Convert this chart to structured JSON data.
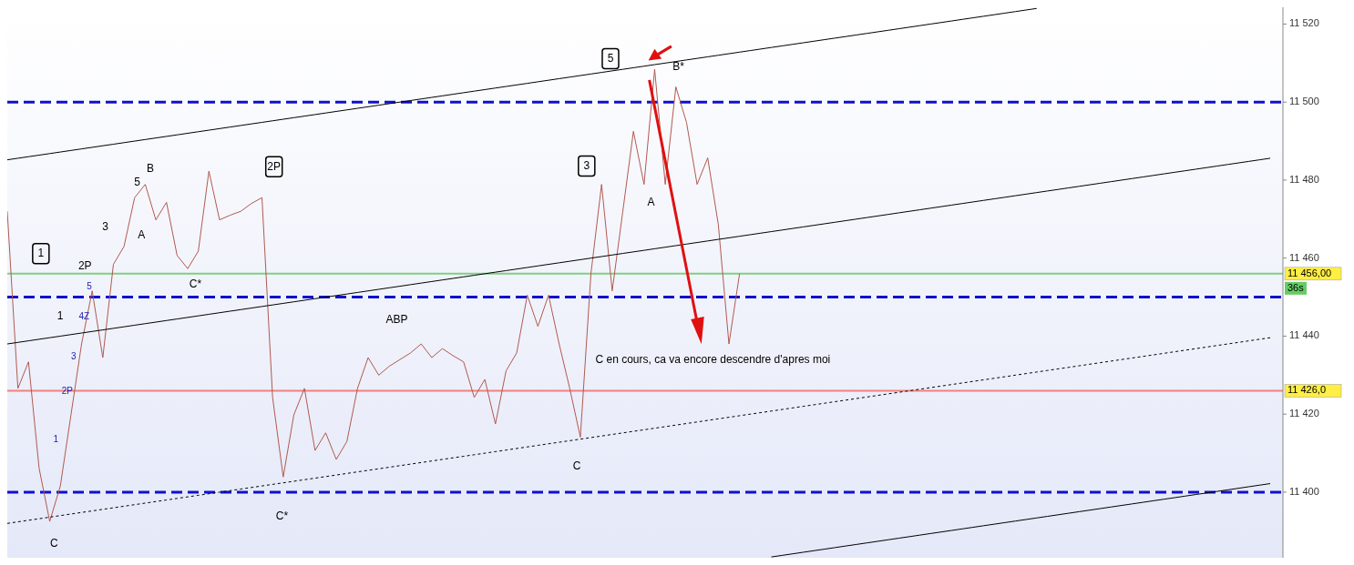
{
  "chart_data": {
    "type": "line",
    "categories": [
      null,
      null,
      null,
      null,
      null,
      null,
      null,
      null,
      null,
      null,
      null,
      null,
      null,
      null,
      null,
      null,
      null,
      null,
      null,
      null,
      null,
      null,
      null,
      null,
      null,
      null,
      null,
      null,
      null,
      null,
      null,
      null,
      null,
      null,
      null,
      null,
      null,
      null,
      null,
      null,
      null,
      null,
      null,
      null,
      null,
      null,
      null,
      null,
      null,
      null,
      null,
      null,
      null,
      null,
      null,
      null,
      null,
      null,
      null,
      null,
      null,
      null,
      null,
      null,
      null,
      null,
      null,
      null,
      null,
      null,
      null,
      null,
      null,
      null,
      null,
      null,
      null,
      null,
      null,
      null,
      null,
      null,
      null,
      null,
      null,
      null,
      null,
      null,
      null,
      null,
      null,
      null,
      null,
      null,
      null,
      null,
      null,
      null,
      null,
      null,
      null,
      null,
      null,
      null,
      null,
      null,
      null,
      null,
      null,
      null,
      null,
      null,
      null,
      null,
      null,
      null,
      null,
      null,
      null,
      null
    ],
    "ylim": [
      11383.2,
      11524.3
    ],
    "yticks": [
      {
        "value": 11400,
        "label": "11 400"
      },
      {
        "value": 11420,
        "label": "11 420"
      },
      {
        "value": 11440,
        "label": "11 440"
      },
      {
        "value": 11460,
        "label": "11 460"
      },
      {
        "value": 11480,
        "label": "11 480"
      },
      {
        "value": 11500,
        "label": "11 500"
      },
      {
        "value": 11520,
        "label": "11 520"
      }
    ],
    "tick_labels": "y",
    "series": [
      {
        "color": "#b05a50",
        "values": [
          11472,
          11426.6,
          11433.4,
          11406.1,
          11392.5,
          11401.6,
          11419.8,
          11438,
          11451.6,
          11434.5,
          11458.4,
          11463,
          11475.5,
          11478.9,
          11469.8,
          11474.3,
          11460.7,
          11457.3,
          11461.8,
          11482.3,
          11469.8,
          11471,
          11472,
          11474,
          11475.5,
          11424.3,
          11403.9,
          11419.8,
          11426.6,
          11410.7,
          11415.2,
          11408.4,
          11413,
          11426.6,
          11434.5,
          11430,
          11432.3,
          11434,
          11435.7,
          11438,
          11434.5,
          11436.8,
          11435,
          11433.4,
          11424.3,
          11428.9,
          11417.5,
          11431.1,
          11435.7,
          11450.5,
          11442.5,
          11450.5,
          11438,
          11426.6,
          11414.1,
          11456.1,
          11478.9,
          11451.6,
          11472,
          11492.5,
          11478.9,
          11508.4,
          11478.9,
          11503.9,
          11494.8,
          11478.9,
          11485.7,
          11468.6,
          11438,
          11456,
          null,
          null,
          null,
          null,
          null,
          null,
          null,
          null,
          null,
          null,
          null,
          null,
          null,
          null,
          null,
          null,
          null,
          null,
          null,
          null,
          null,
          null,
          null,
          null,
          null,
          null,
          null,
          null,
          null,
          null,
          null,
          null,
          null,
          null,
          null,
          null,
          null,
          null,
          null,
          null,
          null,
          null,
          null,
          null,
          null,
          null,
          null,
          null,
          null,
          null
        ]
      },
      {
        "color": "#000000",
        "values": [
          11485.2,
          11485.6,
          11486,
          11486.4,
          11486.8,
          11487.2,
          11487.6,
          11488,
          11488.4,
          11488.8,
          11489.2,
          11489.6,
          11490,
          11490.4,
          11490.8,
          11491.2,
          11491.6,
          11492,
          11492.4,
          11492.8,
          11493.2,
          11493.6,
          11494,
          11494.4,
          11494.8,
          11495.2,
          11495.6,
          11496,
          11496.4,
          11496.8,
          11497.2,
          11497.6,
          11498,
          11498.4,
          11498.8,
          11499.2,
          11499.6,
          11500,
          11500.4,
          11500.8,
          11501.2,
          11501.6,
          11502,
          11502.4,
          11502.8,
          11503.2,
          11503.6,
          11504,
          11504.4,
          11504.8,
          11505.2,
          11505.6,
          11506,
          11506.4,
          11506.8,
          11507.2,
          11507.6,
          11508,
          11508.4,
          11508.8,
          11509.2,
          11509.6,
          11510,
          11510.4,
          11510.8,
          11511.2,
          11511.6,
          11512,
          11512.4,
          11512.8,
          11513.2,
          11513.6,
          11514,
          11514.4,
          11514.8,
          11515.2,
          11515.6,
          11516,
          11516.4,
          11516.8,
          11517.2,
          11517.6,
          11518,
          11518.4,
          11518.8,
          11519.2,
          11519.6,
          11520,
          11520.4,
          11520.8,
          11521.2,
          11521.6,
          11522,
          11522.4,
          11522.8,
          11523.2,
          11523.6,
          11524,
          null,
          null,
          null,
          null,
          null,
          null,
          null,
          null,
          null,
          null,
          null,
          null,
          null,
          null,
          null,
          null,
          null,
          null,
          null,
          null,
          null,
          null
        ]
      },
      {
        "color": "#000000",
        "values": [
          11438,
          11438.4,
          11438.8,
          11439.2,
          11439.6,
          11440,
          11440.4,
          11440.8,
          11441.2,
          11441.6,
          11442,
          11442.4,
          11442.8,
          11443.2,
          11443.6,
          11444,
          11444.4,
          11444.8,
          11445.2,
          11445.6,
          11446,
          11446.4,
          11446.8,
          11447.2,
          11447.6,
          11448,
          11448.4,
          11448.8,
          11449.2,
          11449.6,
          11450,
          11450.4,
          11450.8,
          11451.2,
          11451.6,
          11452,
          11452.4,
          11452.8,
          11453.2,
          11453.6,
          11454,
          11454.4,
          11454.8,
          11455.2,
          11455.6,
          11456,
          11456.4,
          11456.8,
          11457.2,
          11457.6,
          11458,
          11458.4,
          11458.8,
          11459.2,
          11459.6,
          11460,
          11460.4,
          11460.8,
          11461.2,
          11461.6,
          11462,
          11462.4,
          11462.8,
          11463.2,
          11463.6,
          11464,
          11464.4,
          11464.8,
          11465.2,
          11465.6,
          11466,
          11466.4,
          11466.8,
          11467.2,
          11467.6,
          11468,
          11468.4,
          11468.8,
          11469.2,
          11469.6,
          11470,
          11470.4,
          11470.8,
          11471.2,
          11471.6,
          11472,
          11472.4,
          11472.8,
          11473.2,
          11473.6,
          11474,
          11474.4,
          11474.8,
          11475.2,
          11475.6,
          11476,
          11476.4,
          11476.8,
          11477.2,
          11477.6,
          11478,
          11478.4,
          11478.8,
          11479.2,
          11479.6,
          11480,
          11480.4,
          11480.8,
          11481.2,
          11481.6,
          11482,
          11482.4,
          11482.8,
          11483.2,
          11483.6,
          11484,
          11484.4,
          11484.8,
          11485.2,
          11485.6
        ]
      },
      {
        "color": "#000000",
        "line_style": "dotted",
        "values": [
          11392,
          11392.4,
          11392.8,
          11393.2,
          11393.6,
          11394,
          11394.4,
          11394.8,
          11395.2,
          11395.6,
          11396,
          11396.4,
          11396.8,
          11397.2,
          11397.6,
          11398,
          11398.4,
          11398.8,
          11399.2,
          11399.6,
          11400,
          11400.4,
          11400.8,
          11401.2,
          11401.6,
          11402,
          11402.4,
          11402.8,
          11403.2,
          11403.6,
          11404,
          11404.4,
          11404.8,
          11405.2,
          11405.6,
          11406,
          11406.4,
          11406.8,
          11407.2,
          11407.6,
          11408,
          11408.4,
          11408.8,
          11409.2,
          11409.6,
          11410,
          11410.4,
          11410.8,
          11411.2,
          11411.6,
          11412,
          11412.4,
          11412.8,
          11413.2,
          11413.6,
          11414,
          11414.4,
          11414.8,
          11415.2,
          11415.6,
          11416,
          11416.4,
          11416.8,
          11417.2,
          11417.6,
          11418,
          11418.4,
          11418.8,
          11419.2,
          11419.6,
          11420,
          11420.4,
          11420.8,
          11421.2,
          11421.6,
          11422,
          11422.4,
          11422.8,
          11423.2,
          11423.6,
          11424,
          11424.4,
          11424.8,
          11425.2,
          11425.6,
          11426,
          11426.4,
          11426.8,
          11427.2,
          11427.6,
          11428,
          11428.4,
          11428.8,
          11429.2,
          11429.6,
          11430,
          11430.4,
          11430.8,
          11431.2,
          11431.6,
          11432,
          11432.4,
          11432.8,
          11433.2,
          11433.6,
          11434,
          11434.4,
          11434.8,
          11435.2,
          11435.6,
          11436,
          11436.4,
          11436.8,
          11437.2,
          11437.6,
          11438,
          11438.4,
          11438.8,
          11439.2,
          11439.6
        ]
      },
      {
        "color": "#000000",
        "values": [
          null,
          null,
          null,
          null,
          null,
          null,
          null,
          null,
          null,
          null,
          null,
          null,
          null,
          null,
          null,
          null,
          null,
          null,
          null,
          null,
          null,
          null,
          null,
          null,
          null,
          null,
          null,
          null,
          null,
          null,
          null,
          null,
          null,
          null,
          null,
          null,
          null,
          null,
          null,
          null,
          null,
          null,
          null,
          null,
          null,
          null,
          null,
          null,
          null,
          null,
          null,
          null,
          null,
          null,
          null,
          null,
          null,
          null,
          null,
          null,
          null,
          null,
          null,
          null,
          null,
          null,
          null,
          null,
          null,
          null,
          null,
          null,
          11383.4,
          11383.8,
          11384.2,
          11384.6,
          11385,
          11385.4,
          11385.8,
          11386.2,
          11386.6,
          11387,
          11387.4,
          11387.8,
          11388.2,
          11388.6,
          11389,
          11389.4,
          11389.8,
          11390.2,
          11390.6,
          11391,
          11391.4,
          11391.8,
          11392.2,
          11392.6,
          11393,
          11393.4,
          11393.8,
          11394.2,
          11394.6,
          11395,
          11395.4,
          11395.8,
          11396.2,
          11396.6,
          11397,
          11397.4,
          11397.8,
          11398.2,
          11398.6,
          11399,
          11399.4,
          11399.8,
          11400.2,
          11400.6,
          11401,
          11401.4,
          11401.8,
          11402.2
        ]
      }
    ],
    "ref_lines": [
      {
        "axis": "y",
        "value": 11500,
        "color": "#1010cc",
        "line_style": "dashed"
      },
      {
        "axis": "y",
        "value": 11450,
        "color": "#1010cc",
        "line_style": "dashed"
      },
      {
        "axis": "y",
        "value": 11400,
        "color": "#1010cc",
        "line_style": "dashed"
      },
      {
        "axis": "y",
        "value": 11456,
        "color": "#7fcf7f",
        "label": "11 456,00"
      },
      {
        "axis": "y",
        "value": 11426,
        "color": "#f08080",
        "label": "11 426,0"
      }
    ],
    "annotations": [
      "1",
      "2P",
      "5",
      "1",
      "4Z",
      "3",
      "2P",
      "1",
      "C",
      "3",
      "5",
      "B",
      "A",
      "C*",
      "2P",
      "C*",
      "ABP",
      "C",
      "3",
      "5",
      "B*",
      "A",
      "C en cours, ca va encore descendre d'apres moi",
      "36s"
    ]
  }
}
